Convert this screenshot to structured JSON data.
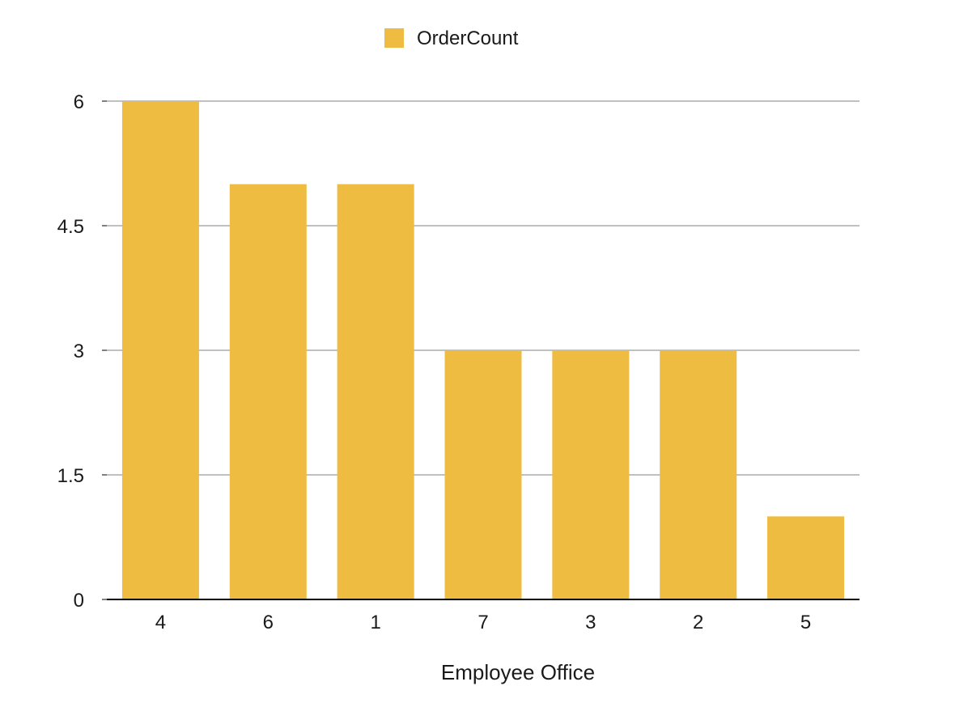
{
  "chart_data": {
    "type": "bar",
    "title": "",
    "xlabel": "Employee Office",
    "ylabel": "",
    "categories": [
      "4",
      "6",
      "1",
      "7",
      "3",
      "2",
      "5"
    ],
    "series": [
      {
        "name": "OrderCount",
        "color": "#EEBC40",
        "values": [
          6,
          5,
          5,
          3,
          3,
          3,
          1
        ]
      }
    ],
    "ylim": [
      0,
      6
    ],
    "yticks": [
      0,
      1.5,
      3,
      4.5,
      6
    ],
    "ytick_labels": [
      "0",
      "1.5",
      "3",
      "4.5",
      "6"
    ],
    "grid": true,
    "legend": "top-center"
  },
  "colors": {
    "grid": "#C0C0C0",
    "axis": "#000000",
    "bar": "#EEBC40"
  }
}
